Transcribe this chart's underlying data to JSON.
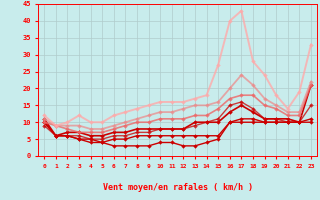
{
  "title": "",
  "xlabel": "Vent moyen/en rafales ( km/h )",
  "ylabel": "",
  "background_color": "#c8ecec",
  "grid_color": "#b0cccc",
  "xlim": [
    -0.5,
    23.5
  ],
  "ylim": [
    0,
    45
  ],
  "yticks": [
    0,
    5,
    10,
    15,
    20,
    25,
    30,
    35,
    40,
    45
  ],
  "xticks": [
    0,
    1,
    2,
    3,
    4,
    5,
    6,
    7,
    8,
    9,
    10,
    11,
    12,
    13,
    14,
    15,
    16,
    17,
    18,
    19,
    20,
    21,
    22,
    23
  ],
  "series": [
    {
      "x": [
        0,
        1,
        2,
        3,
        4,
        5,
        6,
        7,
        8,
        9,
        10,
        11,
        12,
        13,
        14,
        15,
        16,
        17,
        18,
        19,
        20,
        21,
        22,
        23
      ],
      "y": [
        10,
        6,
        6,
        5,
        4,
        4,
        3,
        3,
        3,
        3,
        4,
        4,
        3,
        3,
        4,
        5,
        10,
        10,
        10,
        10,
        10,
        10,
        10,
        10
      ],
      "color": "#cc0000",
      "alpha": 1.0,
      "linewidth": 1.0,
      "markersize": 2.0
    },
    {
      "x": [
        0,
        1,
        2,
        3,
        4,
        5,
        6,
        7,
        8,
        9,
        10,
        11,
        12,
        13,
        14,
        15,
        16,
        17,
        18,
        19,
        20,
        21,
        22,
        23
      ],
      "y": [
        10,
        6,
        6,
        5,
        5,
        4,
        5,
        5,
        6,
        6,
        6,
        6,
        6,
        6,
        6,
        6,
        10,
        11,
        11,
        10,
        10,
        10,
        10,
        11
      ],
      "color": "#cc0000",
      "alpha": 1.0,
      "linewidth": 1.0,
      "markersize": 2.0
    },
    {
      "x": [
        0,
        1,
        2,
        3,
        4,
        5,
        6,
        7,
        8,
        9,
        10,
        11,
        12,
        13,
        14,
        15,
        16,
        17,
        18,
        19,
        20,
        21,
        22,
        23
      ],
      "y": [
        11,
        6,
        7,
        7,
        6,
        6,
        7,
        7,
        8,
        8,
        8,
        8,
        8,
        10,
        10,
        10,
        13,
        15,
        13,
        11,
        11,
        11,
        10,
        21
      ],
      "color": "#cc0000",
      "alpha": 1.0,
      "linewidth": 1.2,
      "markersize": 2.0
    },
    {
      "x": [
        0,
        1,
        2,
        3,
        4,
        5,
        6,
        7,
        8,
        9,
        10,
        11,
        12,
        13,
        14,
        15,
        16,
        17,
        18,
        19,
        20,
        21,
        22,
        23
      ],
      "y": [
        9,
        6,
        6,
        6,
        5,
        5,
        6,
        6,
        7,
        7,
        8,
        8,
        8,
        9,
        10,
        11,
        15,
        16,
        14,
        11,
        11,
        10,
        10,
        15
      ],
      "color": "#cc0000",
      "alpha": 0.75,
      "linewidth": 1.0,
      "markersize": 2.0
    },
    {
      "x": [
        0,
        1,
        2,
        3,
        4,
        5,
        6,
        7,
        8,
        9,
        10,
        11,
        12,
        13,
        14,
        15,
        16,
        17,
        18,
        19,
        20,
        21,
        22,
        23
      ],
      "y": [
        10,
        9,
        8,
        7,
        7,
        7,
        8,
        9,
        10,
        10,
        11,
        11,
        11,
        12,
        12,
        14,
        17,
        18,
        18,
        15,
        14,
        12,
        12,
        21
      ],
      "color": "#ee6666",
      "alpha": 0.8,
      "linewidth": 1.2,
      "markersize": 2.0
    },
    {
      "x": [
        0,
        1,
        2,
        3,
        4,
        5,
        6,
        7,
        8,
        9,
        10,
        11,
        12,
        13,
        14,
        15,
        16,
        17,
        18,
        19,
        20,
        21,
        22,
        23
      ],
      "y": [
        11,
        9,
        9,
        9,
        8,
        8,
        9,
        10,
        11,
        12,
        13,
        13,
        14,
        15,
        15,
        16,
        20,
        24,
        21,
        17,
        15,
        13,
        13,
        22
      ],
      "color": "#ee8888",
      "alpha": 0.7,
      "linewidth": 1.3,
      "markersize": 2.0
    },
    {
      "x": [
        0,
        1,
        2,
        3,
        4,
        5,
        6,
        7,
        8,
        9,
        10,
        11,
        12,
        13,
        14,
        15,
        16,
        17,
        18,
        19,
        20,
        21,
        22,
        23
      ],
      "y": [
        12,
        9,
        10,
        12,
        10,
        10,
        12,
        13,
        14,
        15,
        16,
        16,
        16,
        17,
        18,
        27,
        40,
        43,
        28,
        24,
        18,
        14,
        19,
        33
      ],
      "color": "#ffaaaa",
      "alpha": 0.8,
      "linewidth": 1.4,
      "markersize": 2.0
    }
  ],
  "figsize": [
    3.2,
    2.0
  ],
  "dpi": 100
}
